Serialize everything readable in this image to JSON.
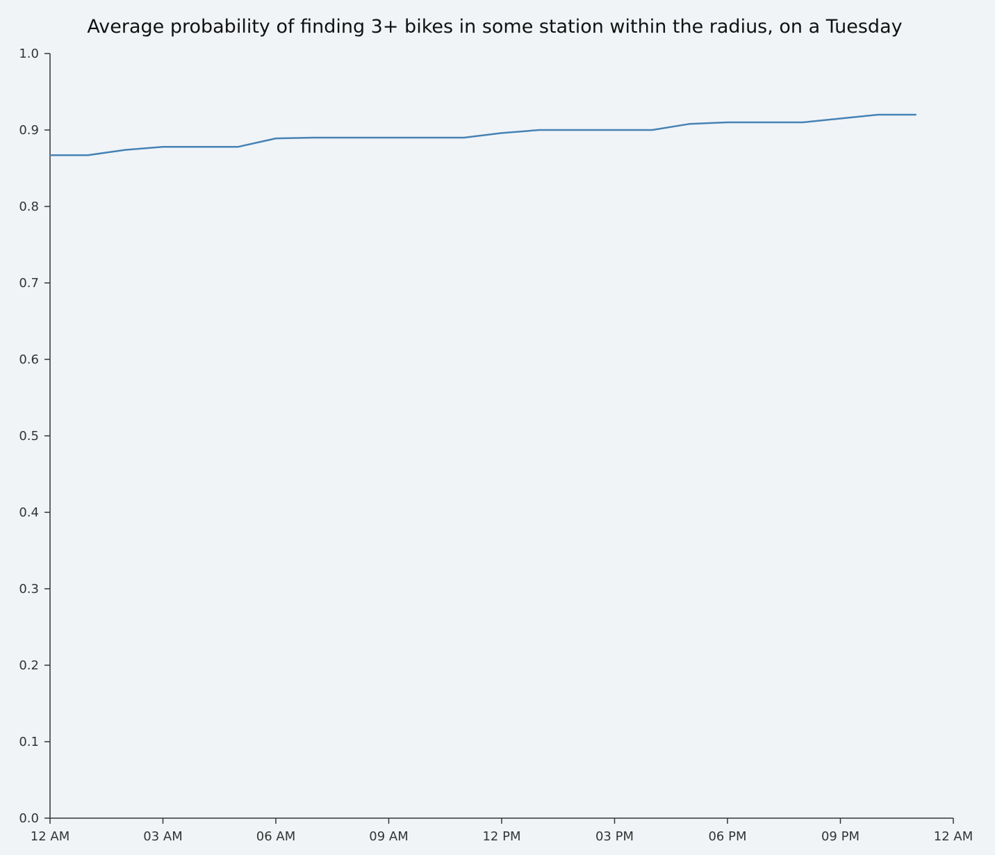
{
  "chart_data": {
    "type": "line",
    "title": "Average probability of finding 3+ bikes in some station within the radius, on a Tuesday",
    "xlabel": "",
    "ylabel": "",
    "x_unit": "hour of day",
    "xlim": [
      0,
      24
    ],
    "ylim": [
      0,
      1
    ],
    "x_ticks": [
      {
        "value": 0,
        "label": "12 AM"
      },
      {
        "value": 3,
        "label": "03 AM"
      },
      {
        "value": 6,
        "label": "06 AM"
      },
      {
        "value": 9,
        "label": "09 AM"
      },
      {
        "value": 12,
        "label": "12 PM"
      },
      {
        "value": 15,
        "label": "03 PM"
      },
      {
        "value": 18,
        "label": "06 PM"
      },
      {
        "value": 21,
        "label": "09 PM"
      },
      {
        "value": 24,
        "label": "12 AM"
      }
    ],
    "y_ticks": [
      {
        "value": 0.0,
        "label": "0.0"
      },
      {
        "value": 0.1,
        "label": "0.1"
      },
      {
        "value": 0.2,
        "label": "0.2"
      },
      {
        "value": 0.3,
        "label": "0.3"
      },
      {
        "value": 0.4,
        "label": "0.4"
      },
      {
        "value": 0.5,
        "label": "0.5"
      },
      {
        "value": 0.6,
        "label": "0.6"
      },
      {
        "value": 0.7,
        "label": "0.7"
      },
      {
        "value": 0.8,
        "label": "0.8"
      },
      {
        "value": 0.9,
        "label": "0.9"
      },
      {
        "value": 1.0,
        "label": "1.0"
      }
    ],
    "grid": false,
    "legend": "none",
    "series": [
      {
        "color": "#4682b4",
        "x": [
          0,
          1,
          2,
          3,
          4,
          5,
          6,
          7,
          8,
          9,
          10,
          11,
          12,
          13,
          14,
          15,
          16,
          17,
          18,
          19,
          20,
          21,
          22,
          23
        ],
        "values": [
          0.867,
          0.867,
          0.874,
          0.878,
          0.878,
          0.878,
          0.889,
          0.89,
          0.89,
          0.89,
          0.89,
          0.89,
          0.896,
          0.9,
          0.9,
          0.9,
          0.9,
          0.908,
          0.91,
          0.91,
          0.91,
          0.915,
          0.92,
          0.92
        ]
      }
    ]
  }
}
